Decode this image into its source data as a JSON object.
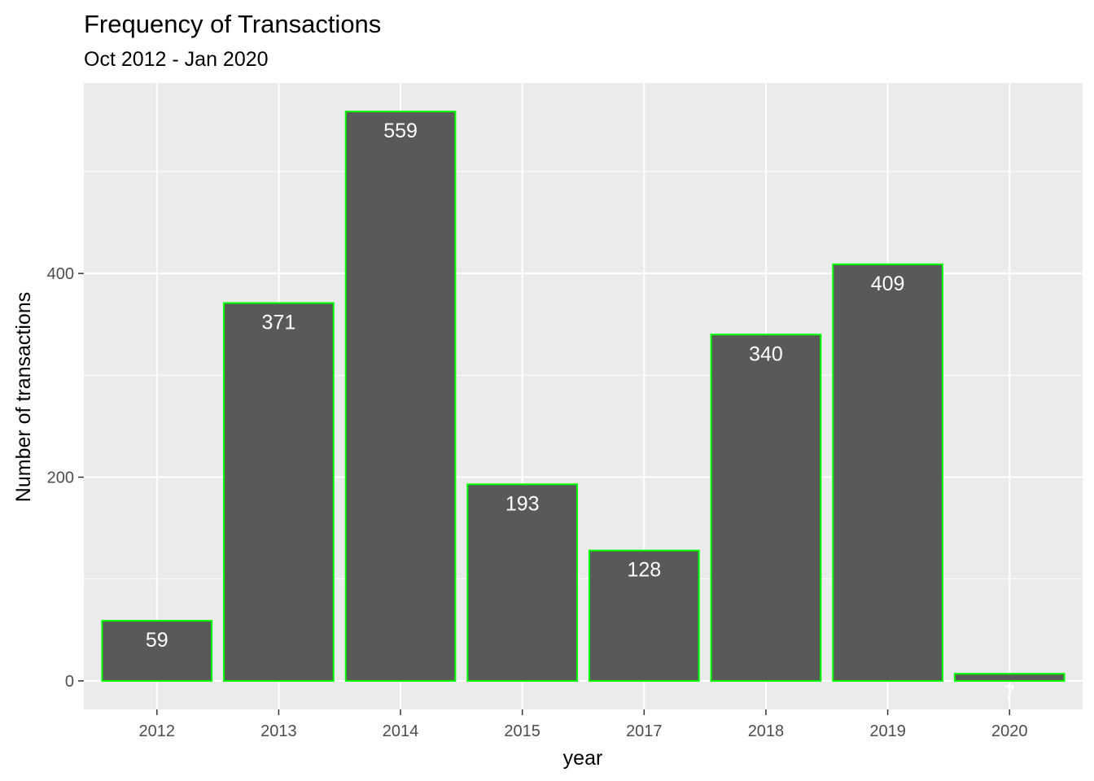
{
  "chart_data": {
    "type": "bar",
    "title": "Frequency of Transactions",
    "subtitle": "Oct 2012 - Jan 2020",
    "xlabel": "year",
    "ylabel": "Number of transactions",
    "categories": [
      "2012",
      "2013",
      "2014",
      "2015",
      "2017",
      "2018",
      "2019",
      "2020"
    ],
    "values": [
      59,
      371,
      559,
      193,
      128,
      340,
      409,
      7
    ],
    "data_labels": [
      "59",
      "371",
      "559",
      "193",
      "128",
      "340",
      "409",
      "7"
    ],
    "yticks": [
      0,
      200,
      400
    ],
    "ytick_labels": [
      "0",
      "200",
      "400"
    ],
    "ylim": [
      -28,
      587
    ],
    "grid": true,
    "colors": {
      "panel": "#ebebeb",
      "grid_major": "#ffffff",
      "bar_fill": "#595959",
      "bar_outline": "#00ff00",
      "label_text": "#ffffff",
      "tick_text": "#4d4d4d",
      "tick_mark": "#333333"
    }
  }
}
